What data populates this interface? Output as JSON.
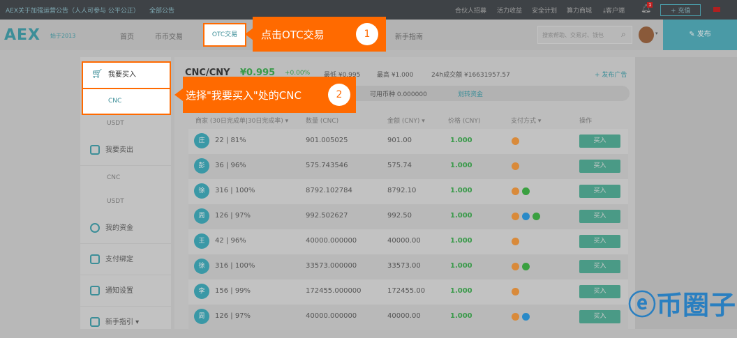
{
  "topbar": {
    "notice": "AEX关于加强运营公告（人人可参与 公平公正）",
    "all_notices": "全部公告",
    "links": [
      "合伙人招募",
      "活力收益",
      "安全计划",
      "算力商城",
      "客户端"
    ],
    "bell_count": "1",
    "recharge": "+ 充值"
  },
  "nav": {
    "logo": "AEX",
    "since": "始于2013",
    "items": [
      "首页",
      "币币交易",
      "OTC交易",
      "新手指南"
    ],
    "search_placeholder": "搜索帮助、交易对、钱包",
    "publish": "发布"
  },
  "callouts": [
    {
      "text": "点击OTC交易",
      "num": "1"
    },
    {
      "text": "选择\"我要买入\"处的CNC",
      "num": "2"
    }
  ],
  "sidebar": {
    "buy": "我要买入",
    "buy_subs": [
      "CNC",
      "USDT"
    ],
    "sell": "我要卖出",
    "sell_subs": [
      "CNC",
      "USDT"
    ],
    "items": [
      "我的资金",
      "支付绑定",
      "通知设置",
      "新手指引 ▾"
    ]
  },
  "market": {
    "pair": "CNC/CNY",
    "price": "¥0.995",
    "change": "+0.00%",
    "low": "最低 ¥0.995",
    "high": "最高 ¥1.000",
    "volume": "24h成交额 ¥16631957.57",
    "post_ad": "+ 发布广告",
    "available": "可用币种 0.000000",
    "transfer": "划转资金"
  },
  "table": {
    "headers": [
      "商家 (30日完成单|30日完成率) ▾",
      "数量 (CNC)",
      "金额 (CNY) ▾",
      "价格 (CNY)",
      "支付方式 ▾",
      "操作"
    ],
    "rows": [
      {
        "avatar": "庄",
        "stats": "22 | 81%",
        "qty": "901.005025",
        "amount": "901.00",
        "price": "1.000",
        "pay": [
          "bank"
        ]
      },
      {
        "avatar": "彭",
        "stats": "36 | 96%",
        "qty": "575.743546",
        "amount": "575.74",
        "price": "1.000",
        "pay": [
          "bank"
        ]
      },
      {
        "avatar": "徐",
        "stats": "316 | 100%",
        "qty": "8792.102784",
        "amount": "8792.10",
        "price": "1.000",
        "pay": [
          "bank",
          "wechat"
        ]
      },
      {
        "avatar": "周",
        "stats": "126 | 97%",
        "qty": "992.502627",
        "amount": "992.50",
        "price": "1.000",
        "pay": [
          "bank",
          "alipay",
          "wechat"
        ]
      },
      {
        "avatar": "王",
        "stats": "42 | 96%",
        "qty": "40000.000000",
        "amount": "40000.00",
        "price": "1.000",
        "pay": [
          "bank"
        ]
      },
      {
        "avatar": "徐",
        "stats": "316 | 100%",
        "qty": "33573.000000",
        "amount": "33573.00",
        "price": "1.000",
        "pay": [
          "bank",
          "wechat"
        ]
      },
      {
        "avatar": "李",
        "stats": "156 | 99%",
        "qty": "172455.000000",
        "amount": "172455.00",
        "price": "1.000",
        "pay": [
          "bank"
        ]
      },
      {
        "avatar": "周",
        "stats": "126 | 97%",
        "qty": "40000.000000",
        "amount": "40000.00",
        "price": "1.000",
        "pay": [
          "bank",
          "alipay"
        ]
      }
    ],
    "buy_label": "买入"
  },
  "pay_colors": {
    "bank": "#d98a3a",
    "alipay": "#2a8ac8",
    "wechat": "#3aa040"
  },
  "watermark": "币圈子"
}
